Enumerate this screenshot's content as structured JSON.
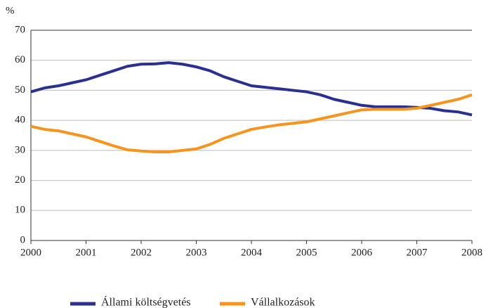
{
  "chart_data": {
    "type": "line",
    "y_label": "%",
    "x": [
      2000,
      2000.25,
      2000.5,
      2000.75,
      2001,
      2001.25,
      2001.5,
      2001.75,
      2002,
      2002.25,
      2002.5,
      2002.75,
      2003,
      2003.25,
      2003.5,
      2003.75,
      2004,
      2004.25,
      2004.5,
      2004.75,
      2005,
      2005.25,
      2005.5,
      2005.75,
      2006,
      2006.25,
      2006.5,
      2006.75,
      2007,
      2007.25,
      2007.5,
      2007.75,
      2008
    ],
    "series": [
      {
        "name": "Állami költségvetés",
        "color": "#2b2f8f",
        "values": [
          49.5,
          50.8,
          51.5,
          52.5,
          53.5,
          55,
          56.5,
          58,
          58.7,
          58.8,
          59.2,
          58.7,
          57.8,
          56.5,
          54.5,
          53,
          51.5,
          51,
          50.5,
          50,
          49.5,
          48.5,
          47,
          46,
          45,
          44.5,
          44.5,
          44.5,
          44.3,
          44,
          43.2,
          42.8,
          41.8
        ]
      },
      {
        "name": "Vállalkozások",
        "color": "#f7941d",
        "values": [
          38,
          37,
          36.5,
          35.5,
          34.5,
          33,
          31.5,
          30.2,
          29.8,
          29.5,
          29.5,
          30,
          30.5,
          32,
          34,
          35.5,
          37,
          37.8,
          38.5,
          39,
          39.5,
          40.5,
          41.5,
          42.5,
          43.5,
          43.7,
          43.7,
          43.7,
          44,
          45,
          46,
          47,
          48.5
        ]
      }
    ],
    "xlim": [
      2000,
      2008
    ],
    "xticks": [
      2000,
      2001,
      2002,
      2003,
      2004,
      2005,
      2006,
      2007,
      2008
    ],
    "ylim": [
      0,
      70
    ],
    "yticks": [
      0,
      10,
      20,
      30,
      40,
      50,
      60,
      70
    ],
    "grid": true,
    "legend": "bottom"
  }
}
